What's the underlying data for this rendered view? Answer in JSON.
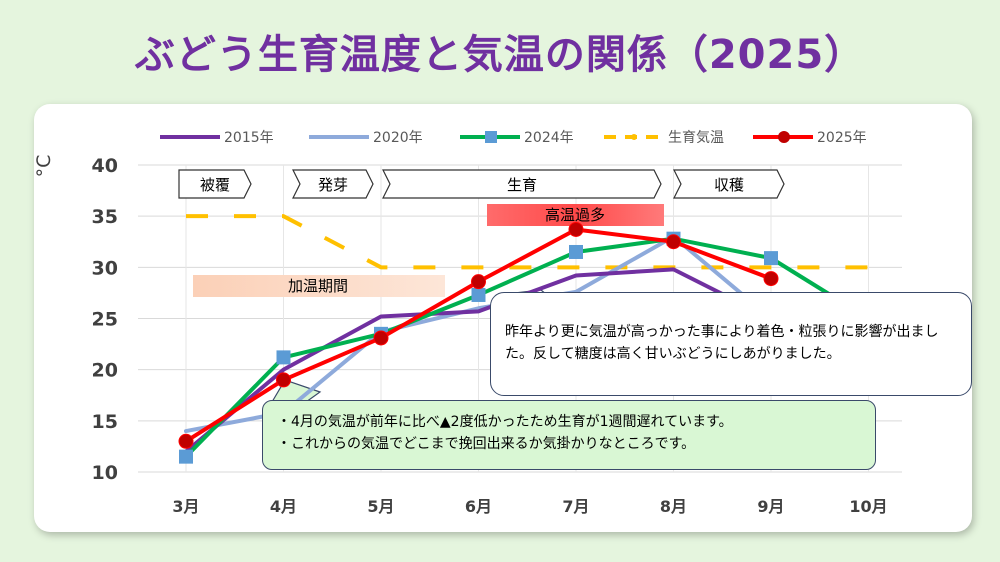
{
  "title": "ぶどう生育温度と気温の関係（2025）",
  "chart_data": {
    "type": "line",
    "ylabel": "°C",
    "ylim": [
      10,
      40
    ],
    "yticks": [
      10,
      15,
      20,
      25,
      30,
      35,
      40
    ],
    "categories": [
      "3月",
      "4月",
      "5月",
      "6月",
      "7月",
      "8月",
      "9月",
      "10月"
    ],
    "series": [
      {
        "name": "2015年",
        "color": "#7030a0",
        "marker": "none",
        "values": [
          12.0,
          20.0,
          25.2,
          25.7,
          29.2,
          29.8,
          25.0,
          null
        ]
      },
      {
        "name": "2020年",
        "color": "#8eaadb",
        "marker": "none",
        "values": [
          14.0,
          15.8,
          23.7,
          26.0,
          27.6,
          33.0,
          25.0,
          null
        ]
      },
      {
        "name": "2024年",
        "color": "#00b050",
        "marker": "square",
        "markerColor": "#5b9bd5",
        "values": [
          11.5,
          21.2,
          23.5,
          27.3,
          31.5,
          32.8,
          30.9,
          25.0
        ]
      },
      {
        "name": "生育気温",
        "color": "#ffc000",
        "marker": "none",
        "dashed": true,
        "values": [
          35,
          35,
          30,
          30,
          30,
          30,
          30,
          30
        ]
      },
      {
        "name": "2025年",
        "color": "#ff0000",
        "marker": "circle",
        "markerColor": "#c00000",
        "values": [
          13.0,
          19.0,
          23.1,
          28.6,
          33.7,
          32.5,
          28.9,
          null
        ]
      }
    ],
    "stages": [
      "被覆",
      "発芽",
      "生育",
      "収穫"
    ],
    "band_labels": {
      "heating": "加温期間",
      "high_temp": "高温過多"
    }
  },
  "callouts": {
    "effect": "昨年より更に気温が高っかった事により着色・粒張りに影響が出ました。反して糖度は高く甘いぶどうにしあがりました。",
    "april_1": "・4月の気温が前年に比べ▲2度低かったため生育が1週間遅れています。",
    "april_2": "・これからの気温でどこまで挽回出来るか気掛かりなところです。"
  }
}
